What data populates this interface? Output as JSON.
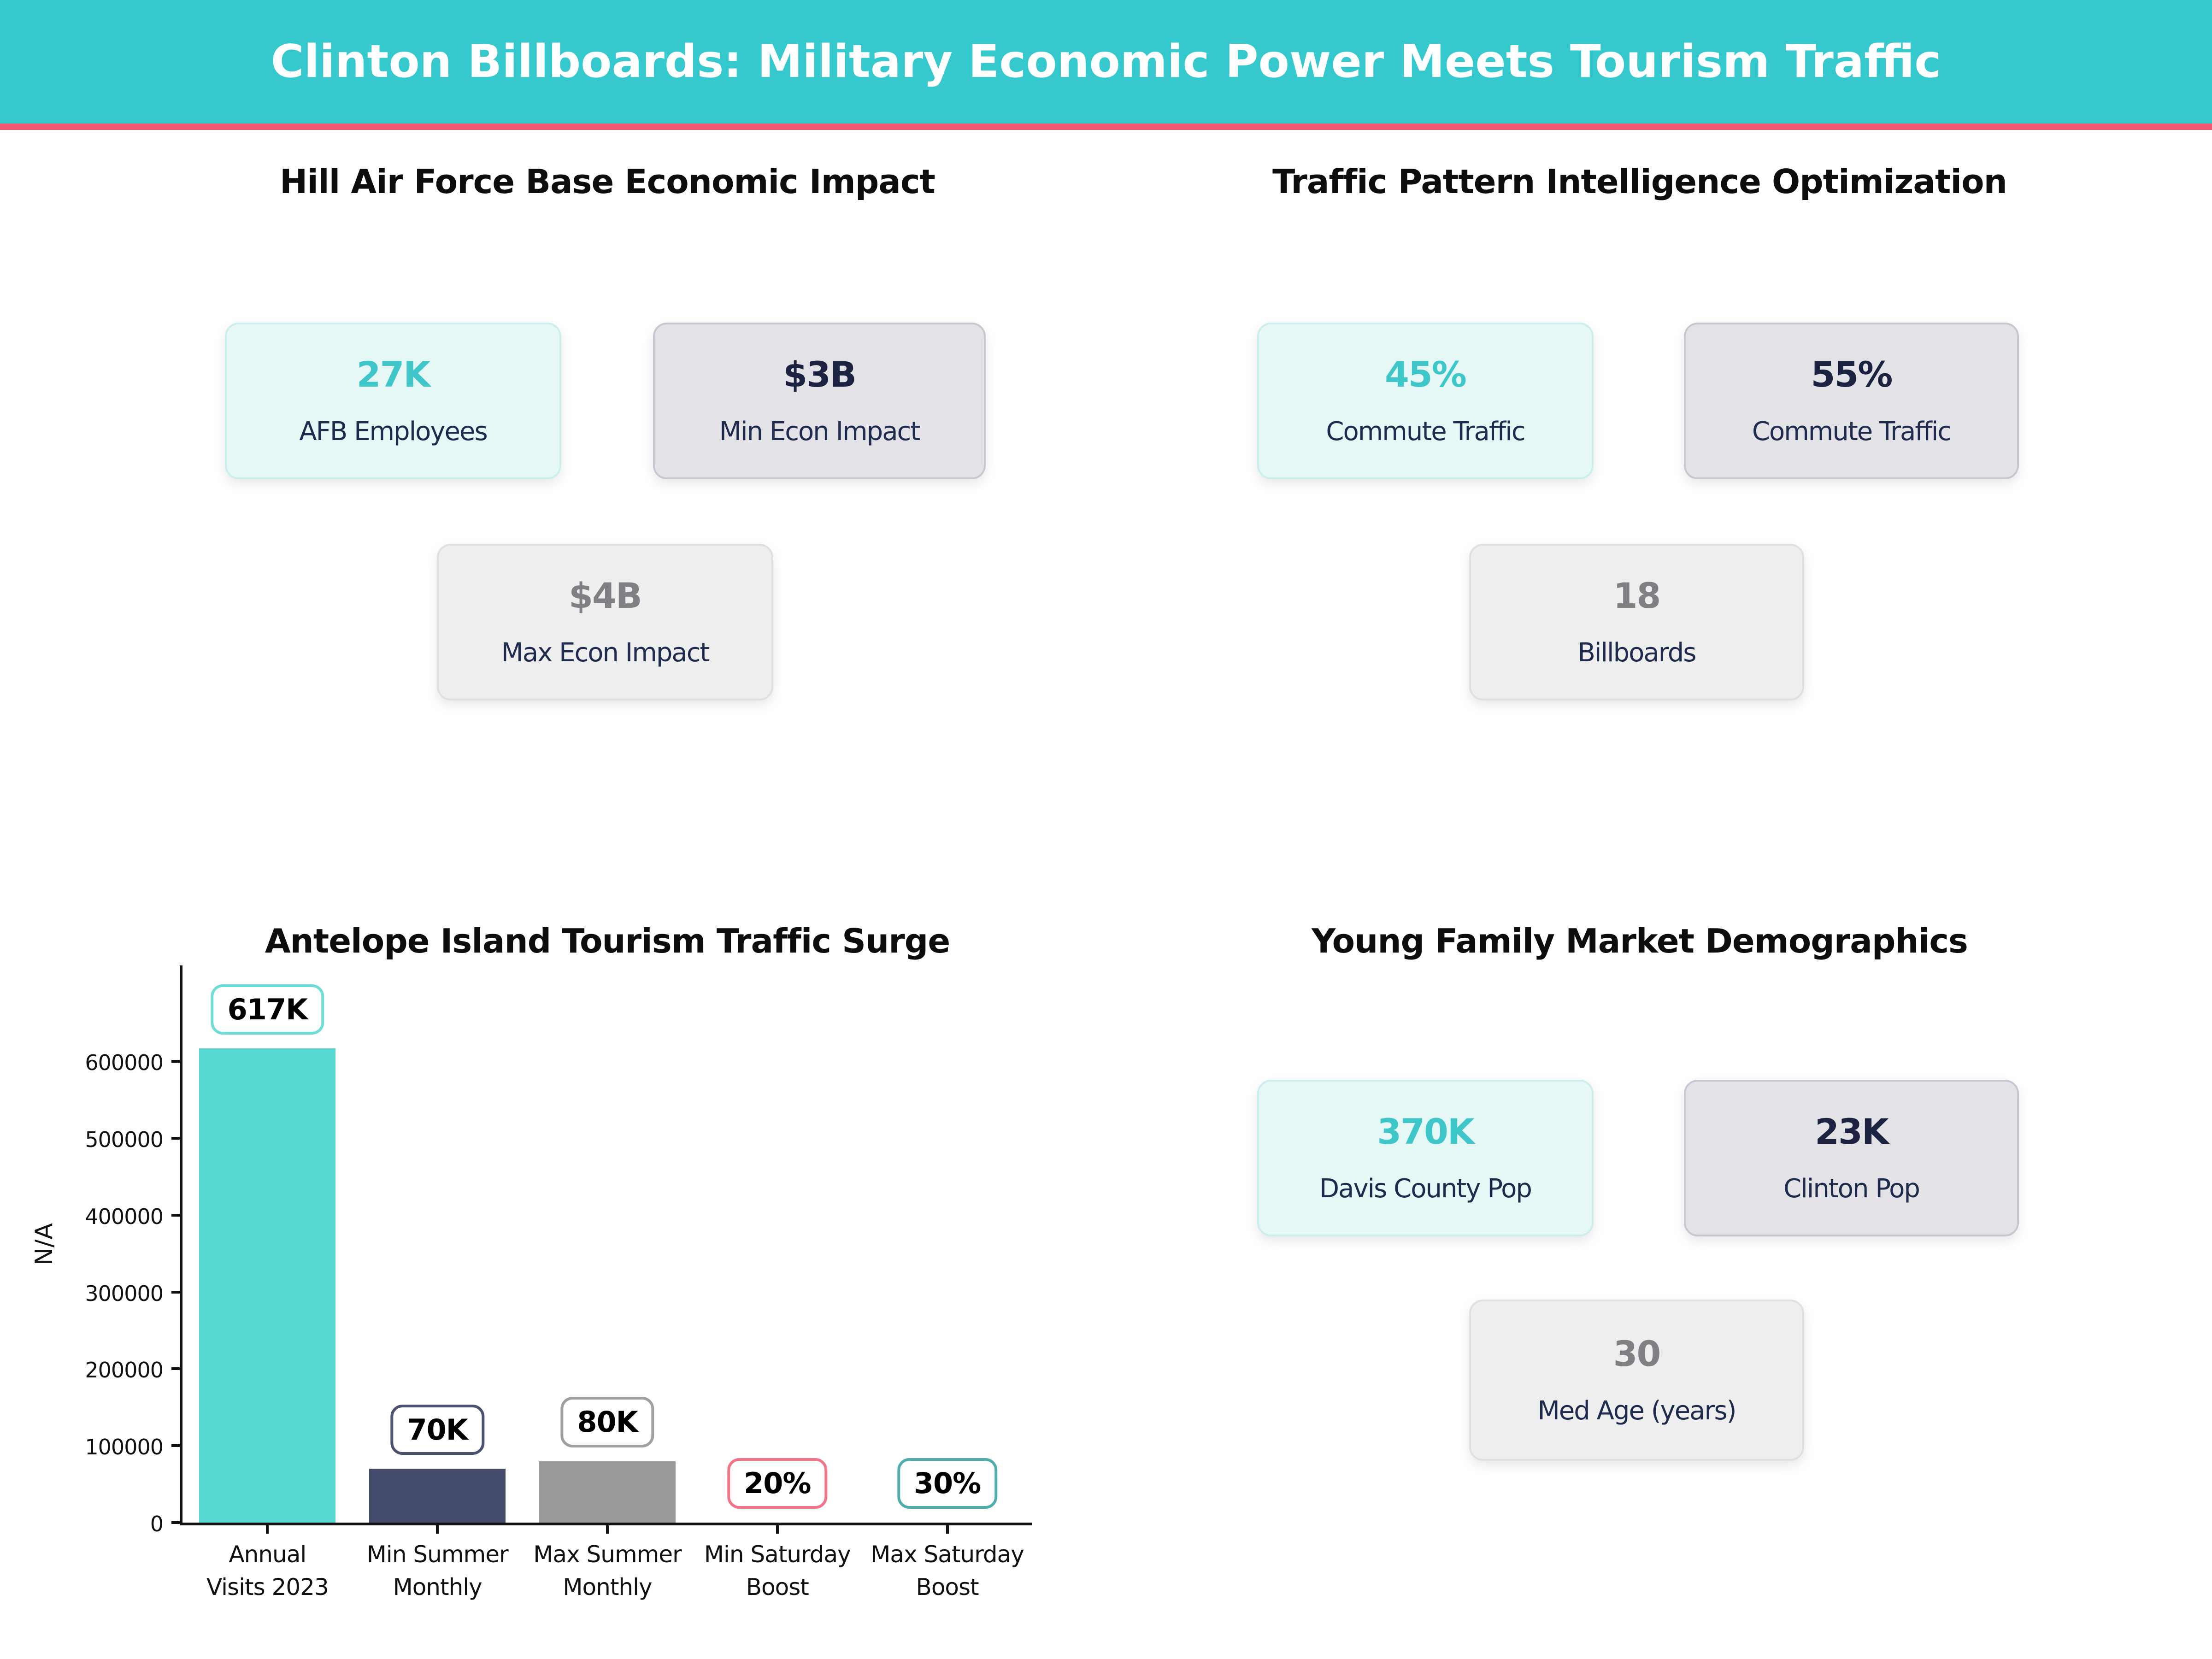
{
  "theme": {
    "header_bg": "#35c8cc",
    "accent_line": "#f0586f",
    "teal": "#3ec6c9",
    "navy": "#1f2b4d",
    "muted_gray": "#7f8083"
  },
  "header": {
    "title": "Clinton Billboards: Military Economic Power Meets Tourism Traffic"
  },
  "sections": [
    {
      "title": "Hill Air Force Base Economic Impact",
      "cards": [
        {
          "value": "27K",
          "label": "AFB Employees",
          "variant": "mint"
        },
        {
          "value": "$3B",
          "label": "Min Econ Impact",
          "variant": "gray"
        },
        {
          "value": "$4B",
          "label": "Max Econ Impact",
          "variant": "light"
        }
      ]
    },
    {
      "title": "Traffic Pattern Intelligence Optimization",
      "cards": [
        {
          "value": "45%",
          "label": "Commute Traffic",
          "variant": "mint"
        },
        {
          "value": "55%",
          "label": "Commute Traffic",
          "variant": "gray"
        },
        {
          "value": "18",
          "label": "Billboards",
          "variant": "light"
        }
      ]
    },
    {
      "title": "Antelope Island Tourism Traffic Surge",
      "type": "chart"
    },
    {
      "title": "Young Family Market Demographics",
      "cards": [
        {
          "value": "370K",
          "label": "Davis County Pop",
          "variant": "mint"
        },
        {
          "value": "23K",
          "label": "Clinton Pop",
          "variant": "gray"
        },
        {
          "value": "30",
          "label": "Med Age (years)",
          "variant": "light"
        }
      ]
    }
  ],
  "chart_data": {
    "type": "bar",
    "title": "Antelope Island Tourism Traffic Surge",
    "categories": [
      "Annual\nVisits 2023",
      "Min Summer\nMonthly",
      "Max Summer\nMonthly",
      "Min Saturday\nBoost",
      "Max Saturday\nBoost"
    ],
    "values": [
      617000,
      70000,
      80000,
      20,
      30
    ],
    "bar_labels": [
      "617K",
      "70K",
      "80K",
      "20%",
      "30%"
    ],
    "bar_colors": [
      "#57d7d1",
      "#454c6b",
      "#999999",
      "#f0758b",
      "#4fadaa"
    ],
    "label_border_colors": [
      "#6fdcd6",
      "#4a5270",
      "#a0a0a0",
      "#f0758b",
      "#4fadaa"
    ],
    "xlabel": "",
    "ylabel": "N/A",
    "ylim": [
      0,
      725000
    ],
    "yticks": [
      0,
      100000,
      200000,
      300000,
      400000,
      500000,
      600000
    ],
    "grid": false,
    "legend": false
  }
}
